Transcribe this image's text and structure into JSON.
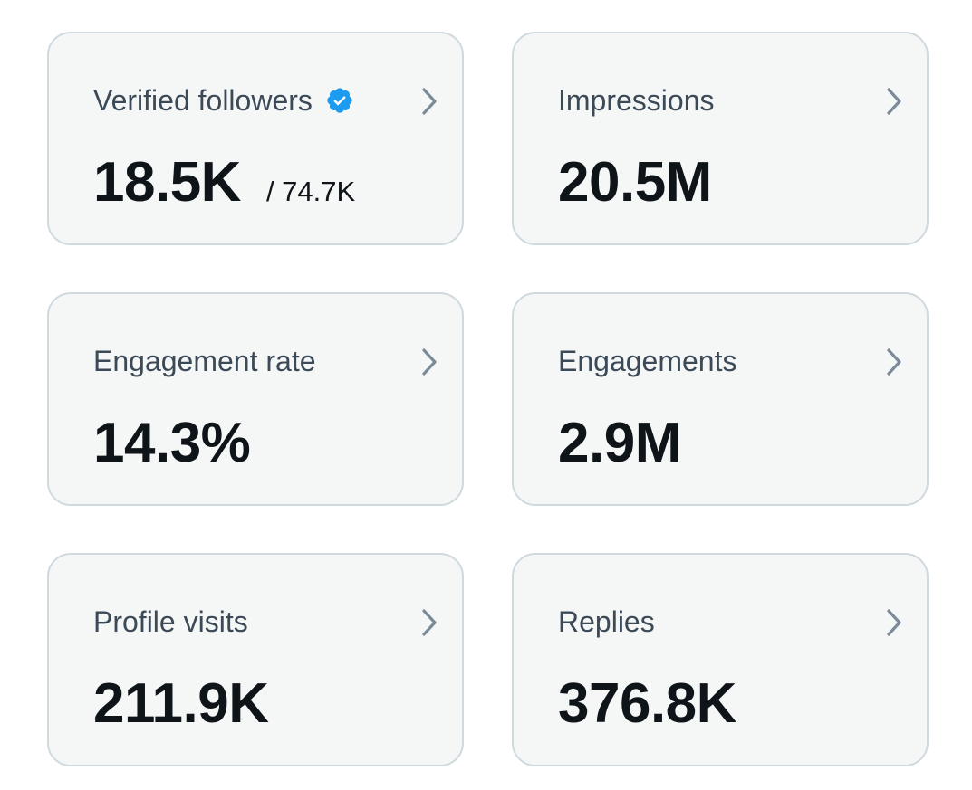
{
  "icons": {
    "chevron": "chevron-right-icon",
    "verified": "verified-badge-icon"
  },
  "colors": {
    "card_background": "#f5f7f7",
    "card_border": "#cfd9de",
    "label_text": "#3c4a57",
    "value_text": "#0f1419",
    "chevron": "#7a8a99",
    "verified_badge": "#1d9bf0"
  },
  "cards": {
    "verified_followers": {
      "label": "Verified followers",
      "value": "18.5K",
      "secondary": "/ 74.7K"
    },
    "impressions": {
      "label": "Impressions",
      "value": "20.5M"
    },
    "engagement_rate": {
      "label": "Engagement rate",
      "value": "14.3%"
    },
    "engagements": {
      "label": "Engagements",
      "value": "2.9M"
    },
    "profile_visits": {
      "label": "Profile visits",
      "value": "211.9K"
    },
    "replies": {
      "label": "Replies",
      "value": "376.8K"
    }
  }
}
